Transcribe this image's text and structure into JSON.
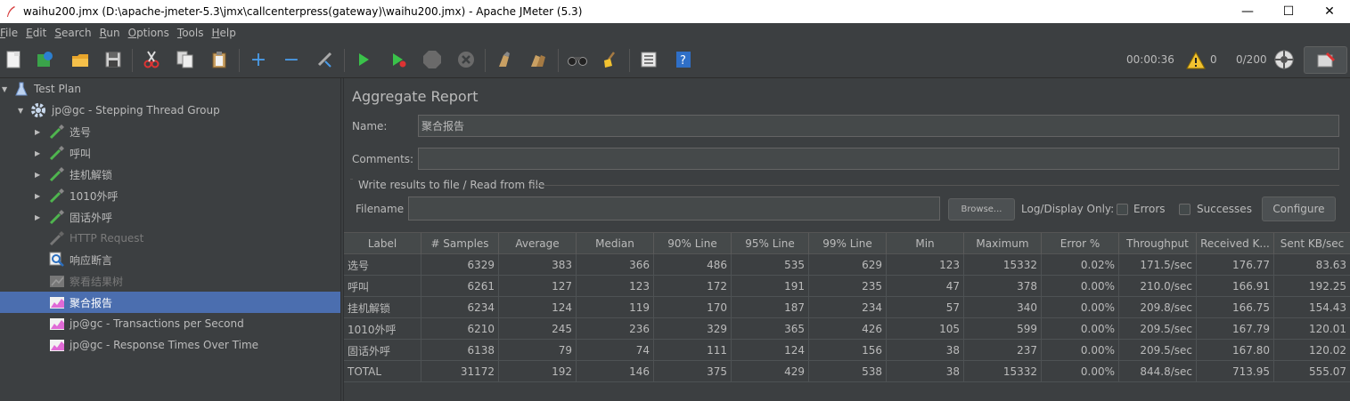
{
  "window": {
    "title": "waihu200.jmx (D:\\apache-jmeter-5.3\\jmx\\callcenterpress(gateway)\\waihu200.jmx) - Apache JMeter (5.3)",
    "minimize": "—",
    "maximize": "☐",
    "close": "✕"
  },
  "menu": [
    {
      "key": "F",
      "rest": "ile"
    },
    {
      "key": "E",
      "rest": "dit"
    },
    {
      "key": "S",
      "rest": "earch"
    },
    {
      "key": "R",
      "rest": "un"
    },
    {
      "key": "O",
      "rest": "ptions"
    },
    {
      "key": "T",
      "rest": "ools"
    },
    {
      "key": "H",
      "rest": "elp"
    }
  ],
  "toolbar": {
    "timer": "00:00:36",
    "warnings": "0",
    "threads": "0/200"
  },
  "tree": [
    {
      "label": "Test Plan"
    },
    {
      "label": "jp@gc - Stepping Thread Group"
    },
    {
      "label": "选号"
    },
    {
      "label": "呼叫"
    },
    {
      "label": "挂机解锁"
    },
    {
      "label": "1010外呼"
    },
    {
      "label": "固话外呼"
    },
    {
      "label": "HTTP Request"
    },
    {
      "label": "响应断言"
    },
    {
      "label": "察看结果树"
    },
    {
      "label": "聚合报告"
    },
    {
      "label": "jp@gc - Transactions per Second"
    },
    {
      "label": "jp@gc - Response Times Over Time"
    }
  ],
  "panel": {
    "title": "Aggregate Report",
    "name_label": "Name:",
    "name_value": "聚合报告",
    "comments_label": "Comments:",
    "comments_value": "",
    "file_group": "Write results to file / Read from file",
    "filename_label": "Filename",
    "filename_value": "",
    "browse": "Browse...",
    "log_display": "Log/Display Only:",
    "errors": "Errors",
    "successes": "Successes",
    "configure": "Configure"
  },
  "table": {
    "headers": [
      "Label",
      "# Samples",
      "Average",
      "Median",
      "90% Line",
      "95% Line",
      "99% Line",
      "Min",
      "Maximum",
      "Error %",
      "Throughput",
      "Received K...",
      "Sent KB/sec"
    ],
    "rows": [
      [
        "选号",
        "6329",
        "383",
        "366",
        "486",
        "535",
        "629",
        "123",
        "15332",
        "0.02%",
        "171.5/sec",
        "176.77",
        "83.63"
      ],
      [
        "呼叫",
        "6261",
        "127",
        "123",
        "172",
        "191",
        "235",
        "47",
        "378",
        "0.00%",
        "210.0/sec",
        "166.91",
        "192.25"
      ],
      [
        "挂机解锁",
        "6234",
        "124",
        "119",
        "170",
        "187",
        "234",
        "57",
        "340",
        "0.00%",
        "209.8/sec",
        "166.75",
        "154.43"
      ],
      [
        "1010外呼",
        "6210",
        "245",
        "236",
        "329",
        "365",
        "426",
        "105",
        "599",
        "0.00%",
        "209.5/sec",
        "167.79",
        "120.01"
      ],
      [
        "固话外呼",
        "6138",
        "79",
        "74",
        "111",
        "124",
        "156",
        "38",
        "237",
        "0.00%",
        "209.5/sec",
        "167.80",
        "120.02"
      ],
      [
        "TOTAL",
        "31172",
        "192",
        "146",
        "375",
        "429",
        "538",
        "38",
        "15332",
        "0.00%",
        "844.8/sec",
        "713.95",
        "555.07"
      ]
    ]
  }
}
